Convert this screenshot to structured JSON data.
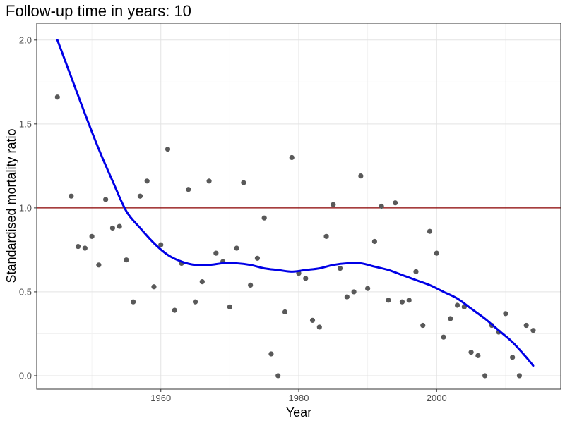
{
  "chart_data": {
    "type": "scatter",
    "title": "Follow-up time in years: 10",
    "xlabel": "Year",
    "ylabel": "Standardised mortality ratio",
    "xlim": [
      1942,
      2018
    ],
    "ylim": [
      -0.08,
      2.1
    ],
    "x_ticks": [
      1960,
      1980,
      2000
    ],
    "x_tick_labels": [
      "1960",
      "1980",
      "2000"
    ],
    "x_minor_ticks": [
      1950,
      1970,
      1990,
      2010
    ],
    "y_ticks": [
      0.0,
      0.5,
      1.0,
      1.5,
      2.0
    ],
    "y_tick_labels": [
      "0.0",
      "0.5",
      "1.0",
      "1.5",
      "2.0"
    ],
    "y_minor_ticks": [
      0.25,
      0.75,
      1.25,
      1.75
    ],
    "grid": true,
    "reference_line": {
      "y": 1.0,
      "color": "#8b0000"
    },
    "points": {
      "color": "#595959",
      "x": [
        1945,
        1947,
        1948,
        1949,
        1950,
        1951,
        1952,
        1953,
        1954,
        1955,
        1956,
        1957,
        1958,
        1959,
        1960,
        1961,
        1962,
        1963,
        1964,
        1965,
        1966,
        1967,
        1968,
        1969,
        1970,
        1971,
        1972,
        1973,
        1974,
        1975,
        1976,
        1977,
        1978,
        1979,
        1980,
        1981,
        1982,
        1983,
        1984,
        1985,
        1986,
        1987,
        1988,
        1989,
        1990,
        1991,
        1992,
        1993,
        1994,
        1995,
        1996,
        1997,
        1998,
        1999,
        2000,
        2001,
        2002,
        2003,
        2004,
        2005,
        2006,
        2007,
        2008,
        2009,
        2010,
        2011,
        2012,
        2013,
        2014
      ],
      "y": [
        1.66,
        1.07,
        0.77,
        0.76,
        0.83,
        0.66,
        1.05,
        0.88,
        0.89,
        0.69,
        0.44,
        1.07,
        1.16,
        0.53,
        0.78,
        1.35,
        0.39,
        0.67,
        1.11,
        0.44,
        0.56,
        1.16,
        0.73,
        0.68,
        0.41,
        0.76,
        1.15,
        0.54,
        0.7,
        0.94,
        0.13,
        0.0,
        0.38,
        1.3,
        0.61,
        0.58,
        0.33,
        0.29,
        0.83,
        1.02,
        0.64,
        0.47,
        0.5,
        1.19,
        0.52,
        0.8,
        1.01,
        0.45,
        1.03,
        0.44,
        0.45,
        0.62,
        0.3,
        0.86,
        0.73,
        0.23,
        0.34,
        0.42,
        0.41,
        0.14,
        0.12,
        0.0,
        0.3,
        0.26,
        0.37,
        0.11,
        0.0,
        0.3,
        0.27
      ]
    },
    "smooth_line": {
      "color": "#0000e6",
      "x": [
        1945,
        1947,
        1949,
        1951,
        1953,
        1955,
        1957,
        1959,
        1961,
        1963,
        1965,
        1967,
        1969,
        1971,
        1973,
        1975,
        1977,
        1979,
        1981,
        1983,
        1985,
        1987,
        1989,
        1991,
        1993,
        1995,
        1997,
        1999,
        2001,
        2003,
        2005,
        2007,
        2009,
        2011,
        2013,
        2014
      ],
      "y": [
        2.0,
        1.78,
        1.56,
        1.35,
        1.16,
        0.98,
        0.88,
        0.79,
        0.72,
        0.68,
        0.66,
        0.66,
        0.67,
        0.67,
        0.66,
        0.64,
        0.63,
        0.62,
        0.63,
        0.64,
        0.66,
        0.67,
        0.67,
        0.65,
        0.63,
        0.6,
        0.57,
        0.54,
        0.5,
        0.46,
        0.4,
        0.34,
        0.27,
        0.2,
        0.11,
        0.06
      ]
    }
  }
}
